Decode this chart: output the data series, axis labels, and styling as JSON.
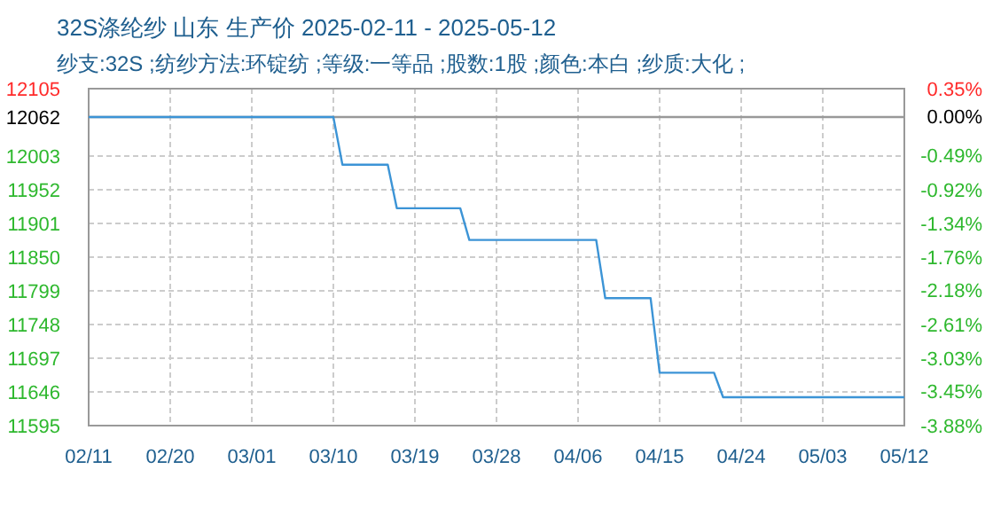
{
  "chart_data": {
    "type": "line",
    "title": "32S涤纶纱 山东 生产价 2025-02-11 - 2025-05-12",
    "subtitle": "纱支:32S ;纺纱方法:环锭纺 ;等级:一等品 ;股数:1股 ;颜色:本白 ;纱质:大化 ;",
    "x": [
      "2025-02-11",
      "2025-03-10",
      "2025-03-11",
      "2025-03-16",
      "2025-03-17",
      "2025-03-24",
      "2025-03-25",
      "2025-04-08",
      "2025-04-09",
      "2025-04-14",
      "2025-04-15",
      "2025-04-21",
      "2025-04-22",
      "2025-05-12"
    ],
    "series": [
      {
        "color": "#3c94d6",
        "values": [
          12062,
          12062,
          11990,
          11990,
          11924,
          11924,
          11876,
          11876,
          11788,
          11788,
          11675,
          11675,
          11638,
          11638
        ]
      }
    ],
    "xlim": [
      "2025-02-11",
      "2025-05-12"
    ],
    "xticks": [
      {
        "value": "2025-02-11",
        "label": "02/11"
      },
      {
        "value": "2025-02-20",
        "label": "02/20"
      },
      {
        "value": "2025-03-01",
        "label": "03/01"
      },
      {
        "value": "2025-03-10",
        "label": "03/10"
      },
      {
        "value": "2025-03-19",
        "label": "03/19"
      },
      {
        "value": "2025-03-28",
        "label": "03/28"
      },
      {
        "value": "2025-04-06",
        "label": "04/06"
      },
      {
        "value": "2025-04-15",
        "label": "04/15"
      },
      {
        "value": "2025-04-24",
        "label": "04/24"
      },
      {
        "value": "2025-05-03",
        "label": "05/03"
      },
      {
        "value": "2025-05-12",
        "label": "05/12"
      }
    ],
    "ylim": [
      11595,
      12105
    ],
    "yticks": [
      11595,
      11646,
      11697,
      11748,
      11799,
      11850,
      11901,
      11952,
      12003,
      12062,
      12105
    ],
    "y2lim": [
      -3.88,
      0.35
    ],
    "y2ticks": [
      {
        "value": -3.88,
        "label": "-3.88%"
      },
      {
        "value": -3.45,
        "label": "-3.45%"
      },
      {
        "value": -3.03,
        "label": "-3.03%"
      },
      {
        "value": -2.61,
        "label": "-2.61%"
      },
      {
        "value": -2.18,
        "label": "-2.18%"
      },
      {
        "value": -1.76,
        "label": "-1.76%"
      },
      {
        "value": -1.34,
        "label": "-1.34%"
      },
      {
        "value": -0.92,
        "label": "-0.92%"
      },
      {
        "value": -0.49,
        "label": "-0.49%"
      },
      {
        "value": 0,
        "label": "0.00%"
      },
      {
        "value": 0.35,
        "label": "0.35%"
      }
    ],
    "ref_lines": [
      {
        "axis": "y",
        "value": 12062,
        "color": "#999999"
      }
    ],
    "grid": true,
    "line_style": "solid",
    "marker": "none"
  }
}
